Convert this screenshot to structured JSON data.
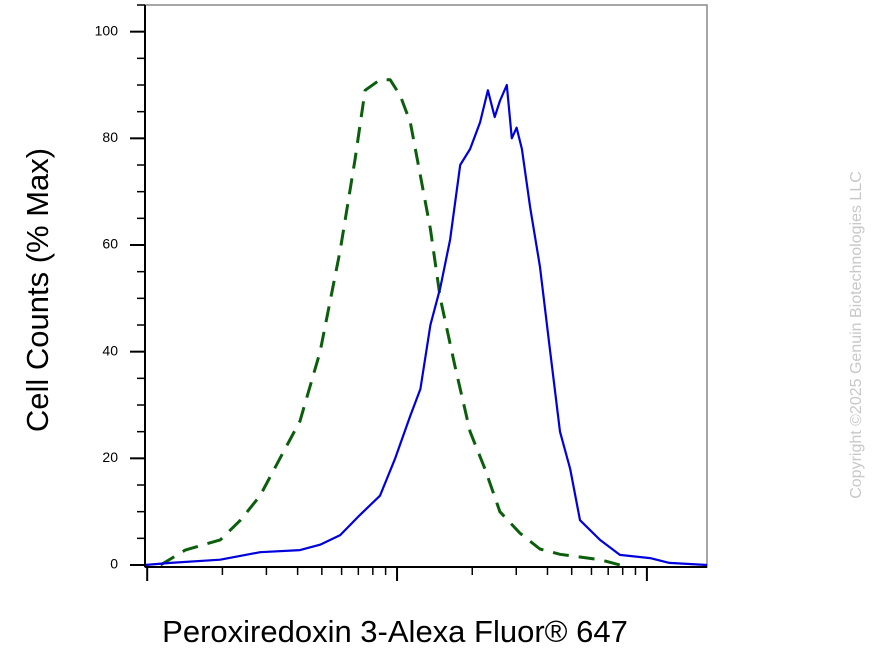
{
  "chart_data": {
    "type": "line",
    "x_label": "Peroxiredoxin 3-Alexa Fluor® 647",
    "y_label": "Cell Counts (% Max)",
    "watermark": "Copyright ©2025 Genuin Biotechnologies LLC",
    "x_scale": "log",
    "xlim": [
      0.98,
      174
    ],
    "xticks": [
      1,
      10,
      100
    ],
    "xminorticks": [
      2,
      3,
      4,
      5,
      6,
      7,
      8,
      9,
      20,
      30,
      40,
      50,
      60,
      70,
      80,
      90
    ],
    "ylim": [
      0,
      105
    ],
    "yticks": [
      0,
      20,
      40,
      60,
      80,
      100
    ],
    "yminorticks": [
      5,
      10,
      15,
      25,
      30,
      35,
      45,
      50,
      55,
      65,
      70,
      75,
      85,
      90,
      95,
      105
    ],
    "series": [
      {
        "color": "#0b5e0b",
        "style": "dashed",
        "x": [
          1.13,
          1.42,
          1.96,
          2.36,
          2.83,
          3.4,
          4.09,
          4.92,
          5.92,
          6.79,
          7.45,
          8.55,
          9.38,
          10.3,
          11.3,
          12.4,
          13.6,
          14.9,
          17.1,
          19.6,
          22.5,
          25.8,
          31.0,
          37.3,
          44.9,
          54.0,
          64.9,
          78.0
        ],
        "values": [
          0,
          2.8,
          4.7,
          8.4,
          13,
          20,
          27,
          40,
          59,
          76,
          89,
          91,
          91,
          88,
          83,
          73,
          63,
          50,
          37,
          25,
          18,
          10,
          6,
          3,
          2,
          1.5,
          1,
          0
        ]
      },
      {
        "color": "#0000dd",
        "style": "solid",
        "x": [
          0.98,
          1.24,
          1.96,
          2.83,
          4.09,
          4.92,
          5.92,
          7.11,
          8.55,
          9.83,
          11.3,
          12.4,
          13.6,
          14.9,
          16.3,
          17.9,
          19.6,
          21.5,
          23.1,
          24.6,
          25.8,
          27.5,
          28.8,
          30.1,
          31.6,
          34.1,
          37.3,
          41.0,
          44.9,
          49.3,
          54.0,
          64.9,
          78.0,
          103,
          123,
          174
        ],
        "values": [
          0,
          0.4,
          1,
          2.4,
          2.8,
          3.8,
          5.6,
          9.4,
          13,
          20,
          28,
          33,
          45,
          52,
          61,
          75,
          78,
          83,
          89,
          84,
          87,
          90,
          80,
          82,
          78,
          67,
          56,
          40,
          25,
          18,
          8.4,
          4.7,
          1.9,
          1.3,
          0.4,
          0
        ]
      }
    ]
  }
}
